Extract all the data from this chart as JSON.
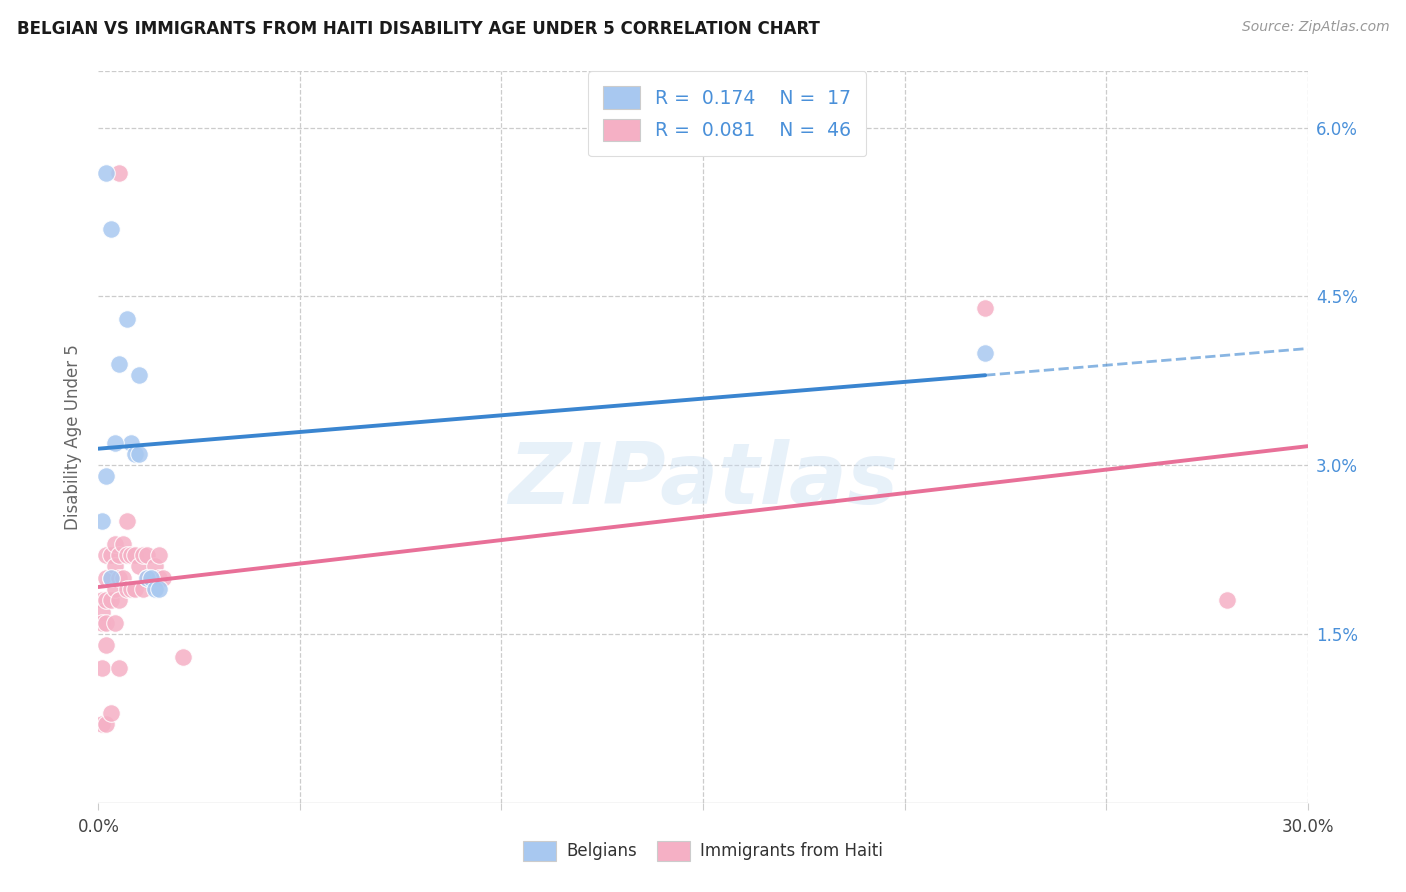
{
  "title": "BELGIAN VS IMMIGRANTS FROM HAITI DISABILITY AGE UNDER 5 CORRELATION CHART",
  "source": "Source: ZipAtlas.com",
  "ylabel": "Disability Age Under 5",
  "legend_label1": "Belgians",
  "legend_label2": "Immigrants from Haiti",
  "R1": "0.174",
  "N1": "17",
  "R2": "0.081",
  "N2": "46",
  "xlim": [
    0.0,
    0.3
  ],
  "ylim": [
    0.0,
    0.065
  ],
  "x_ticks": [
    0.0,
    0.05,
    0.1,
    0.15,
    0.2,
    0.25,
    0.3
  ],
  "x_tick_labels": [
    "0.0%",
    "",
    "",
    "",
    "",
    "",
    "30.0%"
  ],
  "y_ticks_right": [
    0.015,
    0.03,
    0.045,
    0.06
  ],
  "y_tick_labels_right": [
    "1.5%",
    "3.0%",
    "4.5%",
    "6.0%"
  ],
  "color_blue_fill": "#A8C8F0",
  "color_pink_fill": "#F5B0C5",
  "color_blue_line": "#3A85D0",
  "color_pink_line": "#E87098",
  "color_blue_text": "#4A90D9",
  "watermark": "ZIPatlas",
  "background": "#FFFFFF",
  "belgians_x": [
    0.002,
    0.003,
    0.005,
    0.007,
    0.008,
    0.009,
    0.01,
    0.01,
    0.012,
    0.013,
    0.014,
    0.015,
    0.002,
    0.004,
    0.001,
    0.003,
    0.22
  ],
  "belgians_y": [
    0.056,
    0.051,
    0.039,
    0.043,
    0.032,
    0.031,
    0.038,
    0.031,
    0.02,
    0.02,
    0.019,
    0.019,
    0.029,
    0.032,
    0.025,
    0.02,
    0.04
  ],
  "haiti_x": [
    0.001,
    0.001,
    0.001,
    0.001,
    0.001,
    0.002,
    0.002,
    0.002,
    0.002,
    0.002,
    0.002,
    0.003,
    0.003,
    0.003,
    0.003,
    0.004,
    0.004,
    0.004,
    0.004,
    0.005,
    0.005,
    0.005,
    0.005,
    0.006,
    0.006,
    0.007,
    0.007,
    0.007,
    0.008,
    0.008,
    0.009,
    0.009,
    0.01,
    0.011,
    0.011,
    0.012,
    0.012,
    0.013,
    0.014,
    0.015,
    0.015,
    0.016,
    0.021,
    0.28,
    0.005,
    0.22
  ],
  "haiti_y": [
    0.018,
    0.017,
    0.016,
    0.012,
    0.007,
    0.022,
    0.02,
    0.018,
    0.016,
    0.014,
    0.007,
    0.022,
    0.02,
    0.018,
    0.008,
    0.023,
    0.021,
    0.019,
    0.016,
    0.022,
    0.02,
    0.018,
    0.012,
    0.023,
    0.02,
    0.025,
    0.022,
    0.019,
    0.022,
    0.019,
    0.022,
    0.019,
    0.021,
    0.022,
    0.019,
    0.022,
    0.02,
    0.02,
    0.021,
    0.022,
    0.02,
    0.02,
    0.013,
    0.018,
    0.056,
    0.044
  ]
}
